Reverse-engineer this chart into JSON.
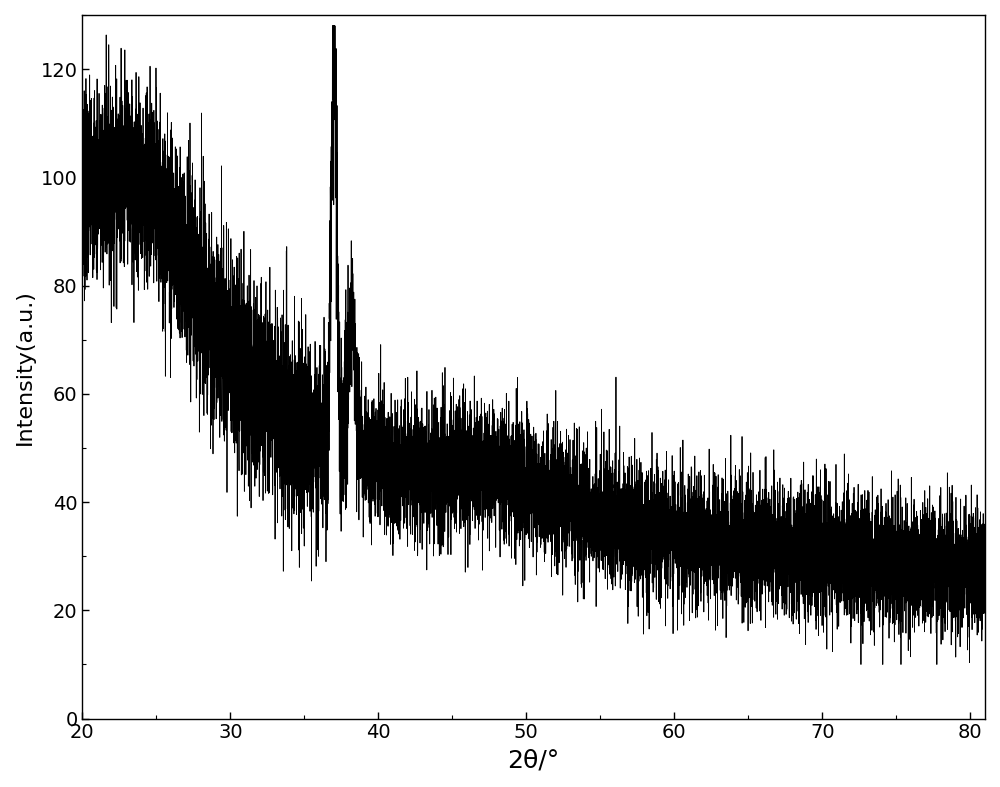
{
  "title": "",
  "xlabel": "2θ/°",
  "ylabel": "Intensity(a.u.)",
  "xlim": [
    20,
    81
  ],
  "ylim": [
    0,
    130
  ],
  "xticks": [
    20,
    30,
    40,
    50,
    60,
    70,
    80
  ],
  "yticks": [
    0,
    20,
    40,
    60,
    80,
    100,
    120
  ],
  "line_color": "#000000",
  "background_color": "#ffffff",
  "line_width": 0.6,
  "xlabel_fontsize": 18,
  "ylabel_fontsize": 16,
  "tick_fontsize": 14,
  "n_points": 12000,
  "seed": 7
}
